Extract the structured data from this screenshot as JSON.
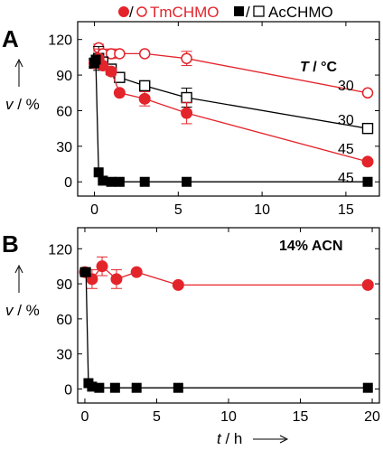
{
  "legend": {
    "series_tm": "TmCHMO",
    "series_ac": "AcCHMO",
    "separator": "/"
  },
  "colors": {
    "tm": "#e3242b",
    "ac": "#000000"
  },
  "panels": {
    "A": {
      "letter": "A",
      "annotation_prefix": "T",
      "annotation_suffix": " / °C",
      "curve_labels": [
        {
          "series": "TmCHMO (open)",
          "text": "30"
        },
        {
          "series": "AcCHMO (open)",
          "text": "30"
        },
        {
          "series": "TmCHMO (filled)",
          "text": "45"
        },
        {
          "series": "AcCHMO (filled)",
          "text": "45"
        }
      ],
      "ylabel_prefix": "v",
      "ylabel_suffix": " / %"
    },
    "B": {
      "letter": "B",
      "annotation": "14% ACN",
      "ylabel_prefix": "v",
      "ylabel_suffix": " / %",
      "xlabel_prefix": "t",
      "xlabel_suffix": " / h"
    }
  },
  "chart_data": [
    {
      "type": "line",
      "panel": "A",
      "xlim": [
        -1,
        17
      ],
      "ylim": [
        -12,
        135
      ],
      "xticks": [
        0,
        5,
        10,
        15
      ],
      "yticks": [
        0,
        30,
        60,
        90,
        120
      ],
      "series": [
        {
          "marker": "open-circle",
          "color": "#e3242b",
          "x": [
            0,
            0.25,
            0.5,
            1,
            1.5,
            3,
            5.5,
            16.3
          ],
          "y": [
            100,
            113,
            108,
            108,
            108,
            108,
            104,
            75
          ],
          "err": [
            0,
            3,
            2,
            4,
            0,
            0,
            6,
            0
          ]
        },
        {
          "marker": "open-square",
          "color": "#000000",
          "x": [
            0,
            0.25,
            0.5,
            1,
            1.5,
            3,
            5.5,
            16.3
          ],
          "y": [
            100,
            104,
            101,
            95,
            88,
            81,
            71,
            45
          ],
          "err": [
            0,
            10,
            0,
            0,
            0,
            3,
            8,
            0
          ]
        },
        {
          "marker": "filled-circle",
          "color": "#e3242b",
          "x": [
            0,
            0.25,
            0.5,
            1,
            1.5,
            3,
            5.5,
            16.3
          ],
          "y": [
            100,
            104,
            98,
            93,
            75,
            70,
            58,
            17
          ],
          "err": [
            0,
            8,
            0,
            3,
            0,
            6,
            9,
            0
          ]
        },
        {
          "marker": "filled-square",
          "color": "#000000",
          "x": [
            0,
            0.08,
            0.25,
            0.5,
            1,
            1.5,
            3,
            5.5,
            16.3
          ],
          "y": [
            100,
            103,
            8,
            1,
            0,
            0,
            0,
            0,
            0
          ],
          "err": [
            0,
            0,
            0,
            0,
            0,
            0,
            0,
            0,
            0
          ]
        }
      ]
    },
    {
      "type": "line",
      "panel": "B",
      "xlim": [
        -0.5,
        20.5
      ],
      "ylim": [
        -12,
        138
      ],
      "xticks": [
        0,
        5,
        10,
        15,
        20
      ],
      "yticks": [
        0,
        30,
        60,
        90,
        120
      ],
      "series": [
        {
          "marker": "filled-circle",
          "color": "#e3242b",
          "x": [
            0,
            0.5,
            1.2,
            2.2,
            3.6,
            6.5,
            19.7
          ],
          "y": [
            100,
            94,
            105,
            94,
            100,
            89,
            89
          ],
          "err": [
            0,
            8,
            8,
            8,
            0,
            0,
            0
          ]
        },
        {
          "marker": "filled-square",
          "color": "#000000",
          "x": [
            0,
            0.08,
            0.25,
            0.5,
            1,
            2.1,
            3.6,
            6.5,
            19.7
          ],
          "y": [
            100,
            100,
            5,
            2,
            1,
            1,
            1,
            1,
            1
          ],
          "err": [
            0,
            0,
            0,
            0,
            0,
            0,
            0,
            0,
            0
          ]
        }
      ]
    }
  ]
}
